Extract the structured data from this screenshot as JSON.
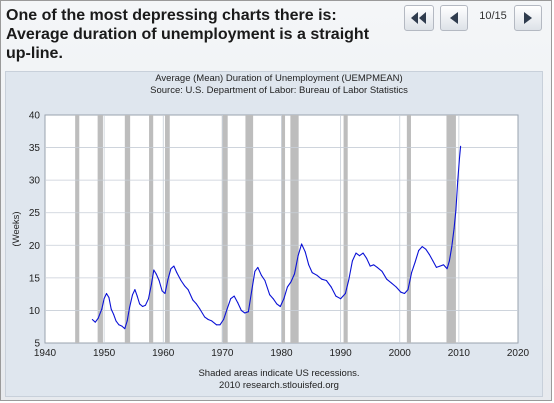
{
  "slide": {
    "title": "One of the most depressing charts there is: Average duration of unemployment is a straight up-line.",
    "counter": "10/15"
  },
  "nav": {
    "first_icon": "double-chevron-left-icon",
    "prev_icon": "triangle-left-icon",
    "next_icon": "triangle-right-icon"
  },
  "colors": {
    "panel_background": "#dfe6ee",
    "plot_background": "#ffffff",
    "series_line": "#0b12d6",
    "recession_shade": "#bdbdbd",
    "grid": "#c7ced7"
  },
  "chart_data": {
    "type": "line",
    "title": "Average (Mean) Duration of Unemployment (UEMPMEAN)",
    "subtitle": "Source: U.S. Department of Labor: Bureau of Labor Statistics",
    "xlabel": "",
    "ylabel": "(Weeks)",
    "xlim": [
      1940,
      2020
    ],
    "ylim": [
      5,
      40
    ],
    "x_ticks": [
      1940,
      1950,
      1960,
      1970,
      1980,
      1990,
      2000,
      2010,
      2020
    ],
    "y_ticks": [
      5,
      10,
      15,
      20,
      25,
      30,
      35,
      40
    ],
    "grid": true,
    "footnote": "Shaded areas indicate US recessions.",
    "footnote2": "2010 research.stlouisfed.org",
    "recessions": [
      [
        1945.1,
        1945.8
      ],
      [
        1948.9,
        1949.8
      ],
      [
        1953.5,
        1954.4
      ],
      [
        1957.6,
        1958.3
      ],
      [
        1960.3,
        1961.1
      ],
      [
        1969.9,
        1970.9
      ],
      [
        1973.9,
        1975.2
      ],
      [
        1980.0,
        1980.6
      ],
      [
        1981.5,
        1982.9
      ],
      [
        1990.5,
        1991.2
      ],
      [
        2001.2,
        2001.9
      ],
      [
        2007.9,
        2009.5
      ]
    ],
    "series": [
      {
        "name": "UEMPMEAN",
        "x": [
          1948.0,
          1948.5,
          1949.0,
          1949.6,
          1950.0,
          1950.4,
          1950.8,
          1951.2,
          1951.6,
          1952.0,
          1952.5,
          1953.0,
          1953.5,
          1953.9,
          1954.3,
          1954.8,
          1955.2,
          1955.6,
          1956.0,
          1956.5,
          1957.0,
          1957.5,
          1958.0,
          1958.4,
          1958.8,
          1959.3,
          1959.8,
          1960.3,
          1960.8,
          1961.3,
          1961.8,
          1962.3,
          1963.0,
          1963.6,
          1964.2,
          1965.0,
          1965.6,
          1966.2,
          1967.0,
          1967.6,
          1968.2,
          1969.0,
          1969.6,
          1970.2,
          1970.8,
          1971.4,
          1972.0,
          1972.6,
          1973.2,
          1973.8,
          1974.4,
          1975.0,
          1975.5,
          1976.0,
          1976.6,
          1977.2,
          1978.0,
          1978.6,
          1979.2,
          1979.8,
          1980.4,
          1981.0,
          1981.6,
          1982.2,
          1982.8,
          1983.4,
          1984.0,
          1984.6,
          1985.2,
          1986.0,
          1986.8,
          1987.6,
          1988.4,
          1989.2,
          1990.0,
          1990.8,
          1991.4,
          1992.0,
          1992.6,
          1993.2,
          1993.8,
          1994.4,
          1995.0,
          1995.6,
          1996.2,
          1997.0,
          1997.8,
          1998.6,
          1999.4,
          2000.2,
          2000.8,
          2001.4,
          2002.0,
          2002.6,
          2003.2,
          2003.8,
          2004.4,
          2005.0,
          2005.6,
          2006.2,
          2006.8,
          2007.4,
          2008.0,
          2008.4,
          2008.8,
          2009.2,
          2009.5,
          2009.8,
          2010.1,
          2010.3
        ],
        "values": [
          8.6,
          8.2,
          8.8,
          10.2,
          11.8,
          12.6,
          12.0,
          10.2,
          9.4,
          8.4,
          7.8,
          7.6,
          7.2,
          8.4,
          10.4,
          12.4,
          13.2,
          12.2,
          11.0,
          10.6,
          10.8,
          11.8,
          14.0,
          16.2,
          15.6,
          14.6,
          13.0,
          12.6,
          14.8,
          16.4,
          16.8,
          15.8,
          14.6,
          13.8,
          13.2,
          11.6,
          11.0,
          10.2,
          9.0,
          8.6,
          8.4,
          7.8,
          7.8,
          8.6,
          10.2,
          11.8,
          12.2,
          11.2,
          10.0,
          9.6,
          9.8,
          13.2,
          16.0,
          16.6,
          15.4,
          14.6,
          12.4,
          11.8,
          11.0,
          10.6,
          11.8,
          13.6,
          14.4,
          15.6,
          18.4,
          20.2,
          19.0,
          17.0,
          15.8,
          15.4,
          14.8,
          14.6,
          13.6,
          12.2,
          11.8,
          12.6,
          14.8,
          17.6,
          18.8,
          18.4,
          18.8,
          18.0,
          16.8,
          17.0,
          16.6,
          16.0,
          14.8,
          14.2,
          13.6,
          12.8,
          12.6,
          13.2,
          15.8,
          17.4,
          19.2,
          19.8,
          19.4,
          18.6,
          17.6,
          16.6,
          16.8,
          17.0,
          16.4,
          17.6,
          19.8,
          22.6,
          25.4,
          29.8,
          33.4,
          35.2
        ]
      }
    ]
  }
}
